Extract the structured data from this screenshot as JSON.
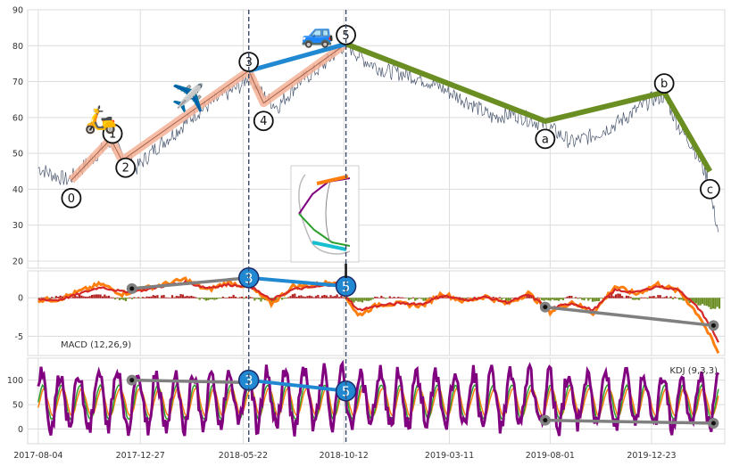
{
  "chart_data": [
    {
      "panel": "price",
      "type": "line",
      "ylim": [
        18,
        90
      ],
      "yticks": [
        20,
        30,
        40,
        50,
        60,
        70,
        80,
        90
      ],
      "grid": true,
      "price_anchors": [
        [
          "2017-08-04",
          46
        ],
        [
          "2017-08-25",
          44
        ],
        [
          "2017-09-15",
          42.5
        ],
        [
          "2017-10-06",
          46
        ],
        [
          "2017-10-27",
          50
        ],
        [
          "2017-11-15",
          53
        ],
        [
          "2017-12-01",
          50
        ],
        [
          "2017-12-22",
          46
        ],
        [
          "2018-01-15",
          51
        ],
        [
          "2018-02-15",
          56
        ],
        [
          "2018-03-15",
          61
        ],
        [
          "2018-04-15",
          65
        ],
        [
          "2018-05-20",
          69
        ],
        [
          "2018-05-30",
          72
        ],
        [
          "2018-06-20",
          66
        ],
        [
          "2018-07-10",
          63
        ],
        [
          "2018-08-10",
          70
        ],
        [
          "2018-09-10",
          74
        ],
        [
          "2018-10-05",
          79
        ],
        [
          "2018-10-15",
          80.5
        ],
        [
          "2018-11-10",
          76
        ],
        [
          "2018-12-10",
          73
        ],
        [
          "2019-01-10",
          72
        ],
        [
          "2019-02-10",
          70
        ],
        [
          "2019-03-11",
          67
        ],
        [
          "2019-04-10",
          64
        ],
        [
          "2019-05-10",
          60
        ],
        [
          "2019-06-10",
          61
        ],
        [
          "2019-07-10",
          59
        ],
        [
          "2019-08-01",
          57
        ],
        [
          "2019-09-01",
          53
        ],
        [
          "2019-10-01",
          55
        ],
        [
          "2019-11-01",
          58
        ],
        [
          "2019-12-01",
          62
        ],
        [
          "2019-12-23",
          65
        ],
        [
          "2020-01-10",
          66
        ],
        [
          "2020-02-01",
          57
        ],
        [
          "2020-02-20",
          52
        ],
        [
          "2020-03-05",
          46
        ],
        [
          "2020-03-15",
          42
        ],
        [
          "2020-03-18",
          36
        ],
        [
          "2020-03-25",
          30
        ],
        [
          "2020-03-27",
          28
        ]
      ],
      "wave_labels": [
        {
          "label": "0",
          "date": "2017-09-20",
          "value": 42.5
        },
        {
          "label": "1",
          "date": "2017-11-15",
          "value": 54
        },
        {
          "label": "2",
          "date": "2017-12-01",
          "value": 48
        },
        {
          "label": "3",
          "date": "2018-05-30",
          "value": 73
        },
        {
          "label": "4",
          "date": "2018-06-20",
          "value": 64
        },
        {
          "label": "5",
          "date": "2018-10-15",
          "value": 80.5
        },
        {
          "label": "a",
          "date": "2019-07-25",
          "value": 59
        },
        {
          "label": "b",
          "date": "2020-01-10",
          "value": 67
        },
        {
          "label": "c",
          "date": "2020-03-15",
          "value": 45
        }
      ],
      "wave_label_positions": [
        "below",
        "right",
        "below",
        "above",
        "below",
        "above",
        "below",
        "above",
        "below"
      ],
      "impulse_path": [
        "0",
        "1",
        "2",
        "3",
        "4",
        "5"
      ],
      "corrective_path": [
        "5",
        "a",
        "b",
        "c"
      ],
      "blue_link": [
        "3",
        "5"
      ],
      "vertical_marker_dates": [
        "2018-05-30",
        "2018-10-15"
      ],
      "icons": [
        {
          "name": "scooter-icon",
          "glyph": "🛵",
          "date": "2017-11-01",
          "value": 57
        },
        {
          "name": "airplane-icon",
          "glyph": "✈️",
          "date": "2018-03-05",
          "value": 63
        },
        {
          "name": "car-icon",
          "glyph": "🚙",
          "date": "2018-09-05",
          "value": 81
        }
      ],
      "colors": {
        "price": "#4b5870",
        "impulse_band": "#f4b196",
        "impulse_line": "#7a2a10",
        "corrective": "#6b8e23",
        "link": "#2189d2",
        "marker": "#3b4b6b"
      }
    },
    {
      "panel": "macd",
      "type": "line",
      "title": "MACD (12,26,9)",
      "ylim": [
        -7.5,
        3.5
      ],
      "yticks": [
        -5,
        0
      ],
      "grid": true,
      "series": [
        {
          "id": "macd",
          "color": "#ff7f0e",
          "values": [
            [
              "2017-08-04",
              -0.3
            ],
            [
              "2017-09-01",
              -0.2
            ],
            [
              "2017-10-01",
              0.8
            ],
            [
              "2017-11-01",
              1.8
            ],
            [
              "2017-12-01",
              0.5
            ],
            [
              "2018-01-01",
              1.2
            ],
            [
              "2018-02-01",
              1.8
            ],
            [
              "2018-03-01",
              2.4
            ],
            [
              "2018-04-01",
              1.0
            ],
            [
              "2018-05-01",
              2.0
            ],
            [
              "2018-06-01",
              1.4
            ],
            [
              "2018-07-01",
              -0.8
            ],
            [
              "2018-08-01",
              1.5
            ],
            [
              "2018-09-01",
              1.6
            ],
            [
              "2018-10-01",
              2.2
            ],
            [
              "2018-11-01",
              -2.3
            ],
            [
              "2018-12-01",
              -0.8
            ],
            [
              "2019-01-01",
              -0.8
            ],
            [
              "2019-02-01",
              -1.0
            ],
            [
              "2019-03-01",
              0.6
            ],
            [
              "2019-04-01",
              -0.5
            ],
            [
              "2019-05-01",
              0.2
            ],
            [
              "2019-06-01",
              -0.8
            ],
            [
              "2019-07-01",
              0.6
            ],
            [
              "2019-08-01",
              -1.8
            ],
            [
              "2019-09-01",
              -0.5
            ],
            [
              "2019-10-01",
              -2.0
            ],
            [
              "2019-11-01",
              1.5
            ],
            [
              "2019-12-01",
              0.5
            ],
            [
              "2020-01-01",
              1.8
            ],
            [
              "2020-02-01",
              0.8
            ],
            [
              "2020-03-01",
              -2.5
            ],
            [
              "2020-03-15",
              -5.0
            ],
            [
              "2020-03-27",
              -7.2
            ]
          ]
        },
        {
          "id": "signal",
          "color": "#d62728",
          "values": [
            [
              "2017-08-04",
              -0.2
            ],
            [
              "2017-09-01",
              -0.3
            ],
            [
              "2017-10-01",
              0.5
            ],
            [
              "2017-11-01",
              1.4
            ],
            [
              "2017-12-01",
              0.8
            ],
            [
              "2018-01-01",
              1.0
            ],
            [
              "2018-02-01",
              1.6
            ],
            [
              "2018-03-01",
              2.0
            ],
            [
              "2018-04-01",
              1.3
            ],
            [
              "2018-05-01",
              1.7
            ],
            [
              "2018-06-01",
              1.5
            ],
            [
              "2018-07-01",
              -0.3
            ],
            [
              "2018-08-01",
              1.1
            ],
            [
              "2018-09-01",
              1.4
            ],
            [
              "2018-10-01",
              1.8
            ],
            [
              "2018-11-01",
              -1.6
            ],
            [
              "2018-12-01",
              -1.0
            ],
            [
              "2019-01-01",
              -0.7
            ],
            [
              "2019-02-01",
              -0.8
            ],
            [
              "2019-03-01",
              0.3
            ],
            [
              "2019-04-01",
              -0.3
            ],
            [
              "2019-05-01",
              0.1
            ],
            [
              "2019-06-01",
              -0.6
            ],
            [
              "2019-07-01",
              0.4
            ],
            [
              "2019-08-01",
              -1.4
            ],
            [
              "2019-09-01",
              -0.7
            ],
            [
              "2019-10-01",
              -1.6
            ],
            [
              "2019-11-01",
              1.0
            ],
            [
              "2019-12-01",
              0.7
            ],
            [
              "2020-01-01",
              1.5
            ],
            [
              "2020-02-01",
              1.0
            ],
            [
              "2020-03-01",
              -1.6
            ],
            [
              "2020-03-15",
              -3.6
            ],
            [
              "2020-03-27",
              -5.8
            ]
          ]
        }
      ],
      "markers": [
        {
          "label": "3",
          "date": "2018-05-30",
          "value": 2.6
        },
        {
          "label": "5",
          "date": "2018-10-15",
          "value": 1.5
        }
      ],
      "gray_links": [
        [
          [
            "2017-12-15",
            1.2
          ],
          [
            "2018-05-30",
            2.6
          ]
        ],
        [
          [
            "2019-07-25",
            -1.2
          ],
          [
            "2020-03-20",
            -3.6
          ]
        ]
      ],
      "annotation_arrow_date": "2018-10-15"
    },
    {
      "panel": "kdj",
      "type": "line",
      "title": "KDJ (9,3,3)",
      "ylim": [
        -30,
        145
      ],
      "yticks": [
        0,
        50,
        100
      ],
      "grid": true,
      "xticks": [
        "2017-08-04",
        "2017-12-27",
        "2018-05-22",
        "2018-10-12",
        "2019-03-11",
        "2019-08-01",
        "2019-12-23"
      ],
      "series": [
        {
          "id": "j",
          "color": "#800080",
          "range": [
            -20,
            140
          ]
        },
        {
          "id": "k",
          "color": "#2ca02c"
        },
        {
          "id": "d",
          "color": "#ff7f0e"
        }
      ],
      "markers": [
        {
          "label": "3",
          "date": "2018-05-30",
          "value": 100
        },
        {
          "label": "5",
          "date": "2018-10-15",
          "value": 78
        }
      ],
      "gray_links": [
        [
          [
            "2017-12-15",
            100
          ],
          [
            "2018-05-30",
            95
          ]
        ],
        [
          [
            "2019-07-25",
            18
          ],
          [
            "2020-03-20",
            12
          ]
        ]
      ]
    }
  ],
  "inset": {
    "name": "candlestick-thumbnail",
    "description_colors": [
      "#ff7f0e",
      "#800080",
      "#2ca02c",
      "#17becf"
    ]
  }
}
